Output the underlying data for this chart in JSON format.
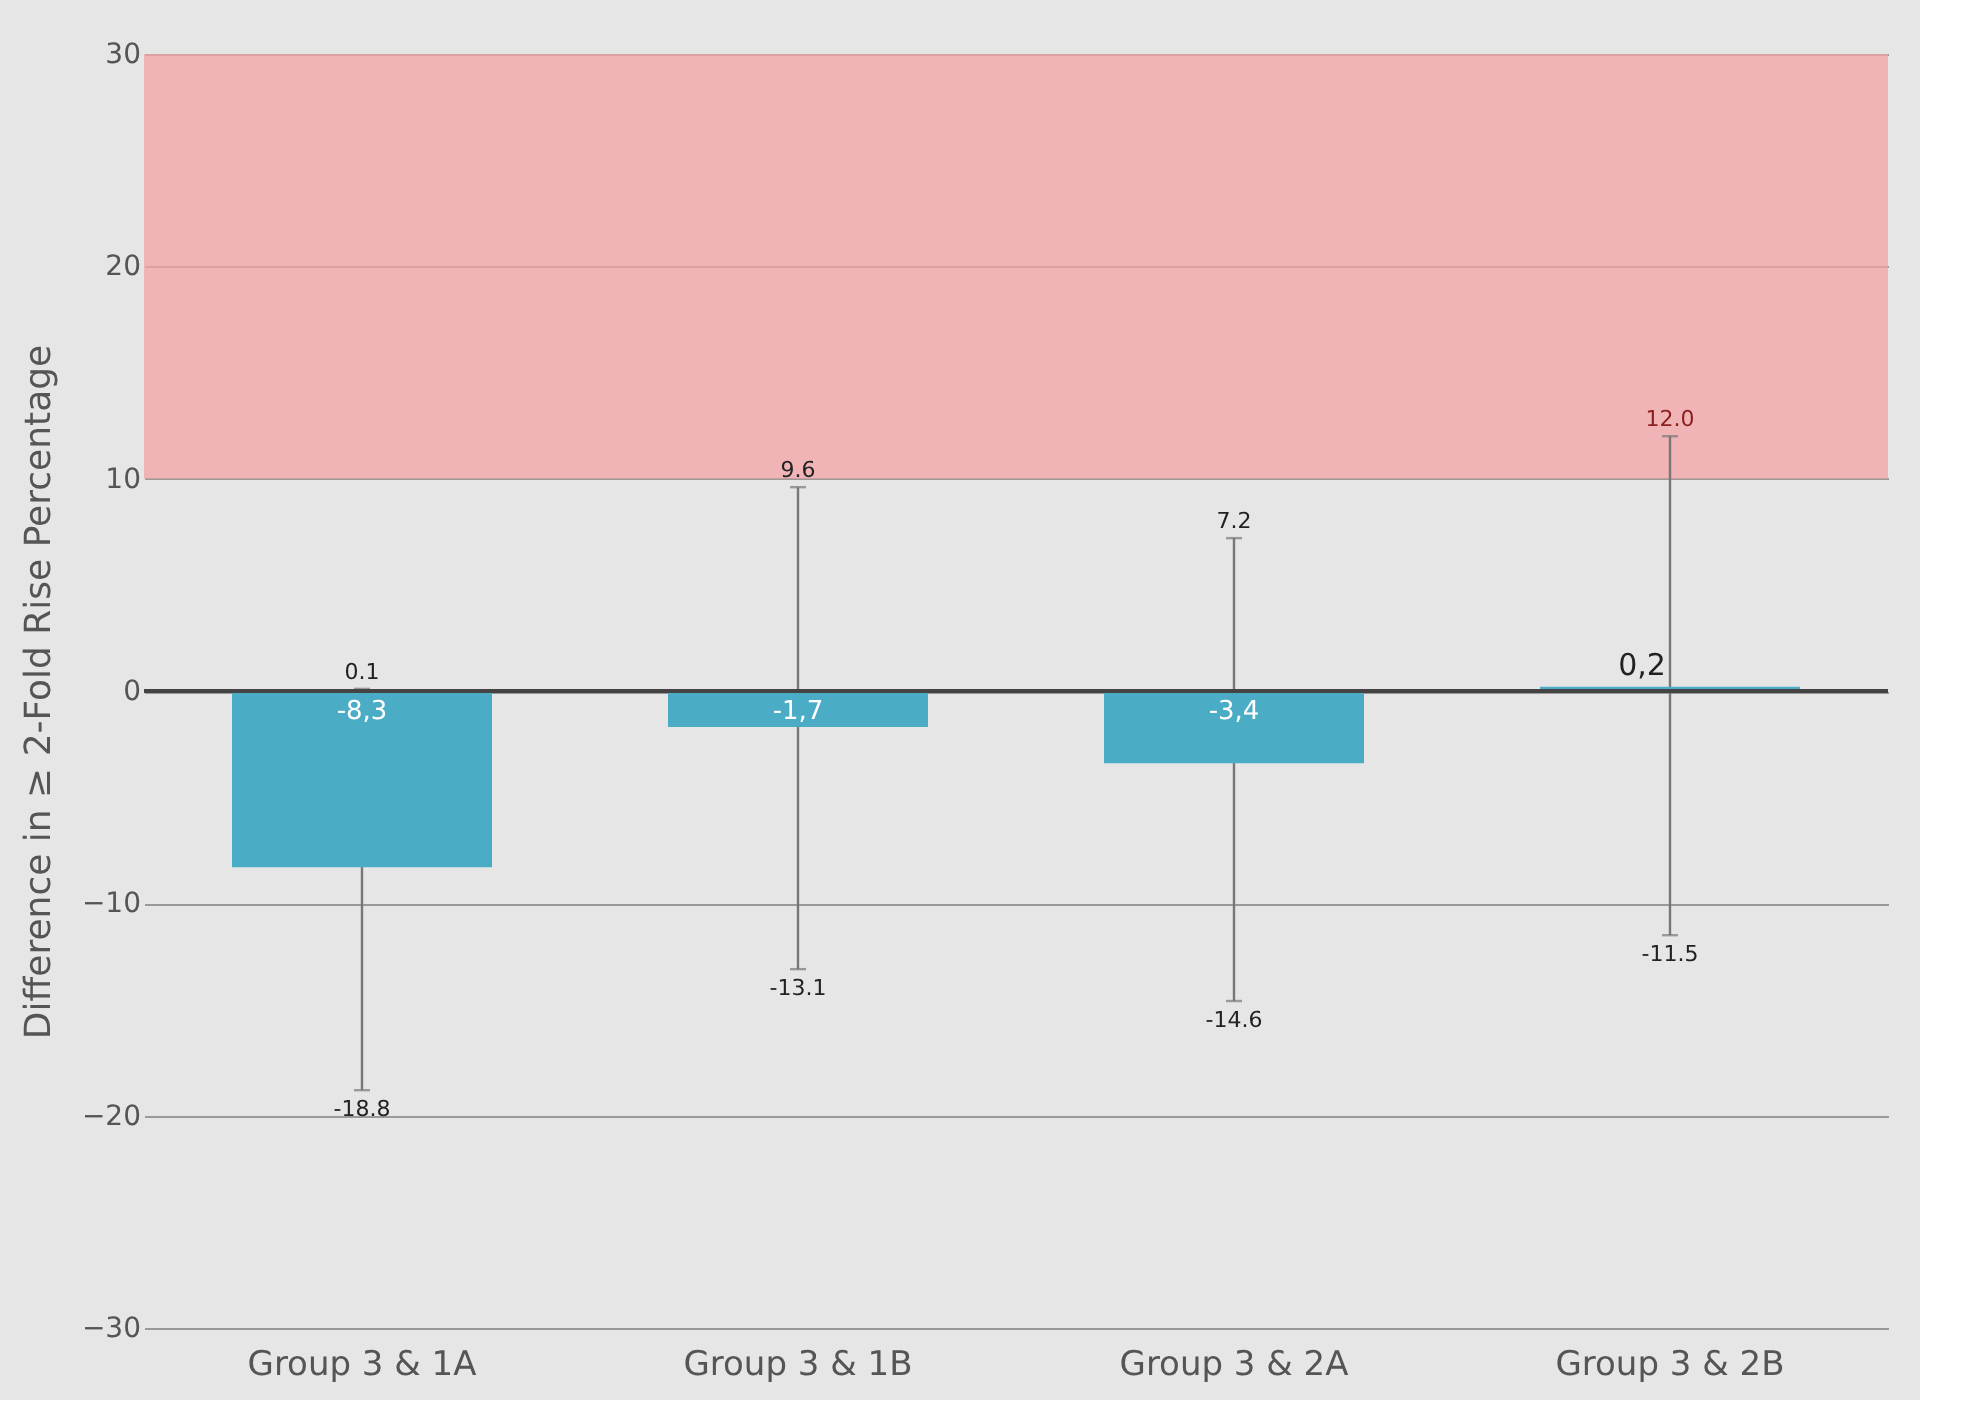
{
  "chart_data": {
    "type": "bar",
    "ylabel": "Difference in ≥ 2-Fold Rise Percentage",
    "categories": [
      "Group 3 & 1A",
      "Group 3 & 1B",
      "Group 3 & 2A",
      "Group 3 & 2B"
    ],
    "values": [
      -8.3,
      -1.7,
      -3.4,
      0.2
    ],
    "value_labels": [
      "-8,3",
      "-1,7",
      "-3,4",
      "0,2"
    ],
    "color": "#4bacc6",
    "errors": [
      [
        -18.8,
        0.1
      ],
      [
        -13.1,
        9.6
      ],
      [
        -14.6,
        7.2
      ],
      [
        -11.5,
        12.0
      ]
    ],
    "annotations": [
      {
        "text": "0.1",
        "x": "Group 3 & 1A",
        "y": 0.1
      },
      {
        "text": "-18.8",
        "x": "Group 3 & 1A",
        "y": -18.8
      },
      {
        "text": "9.6",
        "x": "Group 3 & 1B",
        "y": 9.6
      },
      {
        "text": "-13.1",
        "x": "Group 3 & 1B",
        "y": -13.1
      },
      {
        "text": "7.2",
        "x": "Group 3 & 2A",
        "y": 7.2
      },
      {
        "text": "-14.6",
        "x": "Group 3 & 2A",
        "y": -14.6
      },
      {
        "text": "12.0",
        "x": "Group 3 & 2B",
        "y": 12.0
      },
      {
        "text": "-11.5",
        "x": "Group 3 & 2B",
        "y": -11.5
      }
    ],
    "bands": [
      {
        "axis": "y",
        "from": 10,
        "to": 30,
        "color": "#f4a3a6"
      }
    ],
    "ylim": [
      -30,
      30
    ],
    "yticks": [
      -30,
      -20,
      -10,
      0,
      10,
      20,
      30
    ],
    "grid": "y"
  }
}
